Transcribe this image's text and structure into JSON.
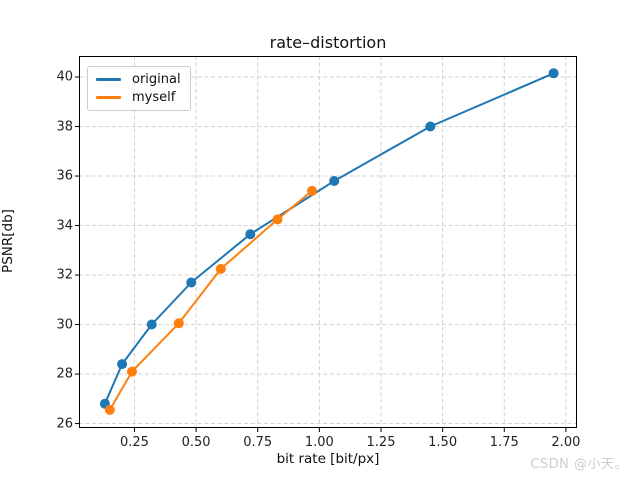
{
  "figure": {
    "title": "rate–distortion",
    "watermark": "CSDN @小天。"
  },
  "colors": {
    "original": "#1f77b4",
    "myself": "#ff7f0e",
    "grid": "#d2d2d2",
    "spine": "#000000",
    "tick_text": "#222222",
    "watermark": "#cbcdd1"
  },
  "chart_data": {
    "type": "line",
    "title": "rate–distortion",
    "xlabel": "bit rate [bit/px]",
    "ylabel": "PSNR[db]",
    "xlim": [
      0.025,
      2.045
    ],
    "ylim": [
      25.82,
      40.85
    ],
    "xticks": [
      0.25,
      0.5,
      0.75,
      1.0,
      1.25,
      1.5,
      1.75,
      2.0
    ],
    "xtick_labels": [
      "0.25",
      "0.50",
      "0.75",
      "1.00",
      "1.25",
      "1.50",
      "1.75",
      "2.00"
    ],
    "yticks": [
      26,
      28,
      30,
      32,
      34,
      36,
      38,
      40
    ],
    "ytick_labels": [
      "26",
      "28",
      "30",
      "32",
      "34",
      "36",
      "38",
      "40"
    ],
    "grid": "dashed",
    "legend_position": "upper-left",
    "marker": "circle",
    "series": [
      {
        "name": "original",
        "color": "#1f77b4",
        "x": [
          0.13,
          0.2,
          0.32,
          0.48,
          0.72,
          1.06,
          1.45,
          1.95
        ],
        "y": [
          26.8,
          28.4,
          30.0,
          31.7,
          33.65,
          35.8,
          38.0,
          40.15
        ]
      },
      {
        "name": "myself",
        "color": "#ff7f0e",
        "x": [
          0.15,
          0.24,
          0.43,
          0.6,
          0.83,
          0.97
        ],
        "y": [
          26.55,
          28.1,
          30.05,
          32.25,
          34.25,
          35.4
        ]
      }
    ]
  }
}
